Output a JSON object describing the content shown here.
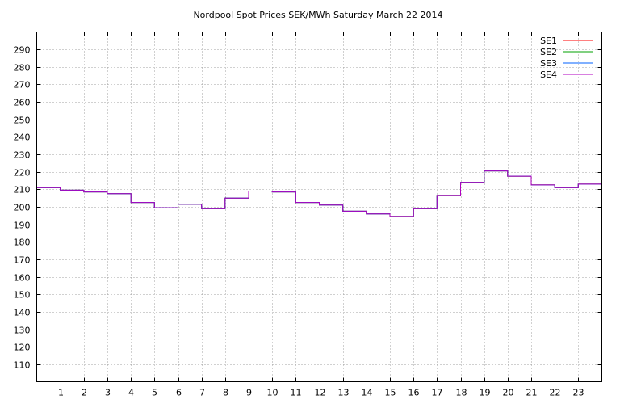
{
  "chart_data": {
    "type": "line",
    "step": true,
    "title": "Nordpool Spot Prices SEK/MWh Saturday March 22 2014",
    "xlabel": "",
    "ylabel": "",
    "xlim": [
      0,
      24
    ],
    "ylim": [
      100,
      300
    ],
    "x_ticks": [
      "1",
      "2",
      "3",
      "4",
      "5",
      "6",
      "7",
      "8",
      "9",
      "10",
      "11",
      "12",
      "13",
      "14",
      "15",
      "16",
      "17",
      "18",
      "19",
      "20",
      "21",
      "22",
      "23"
    ],
    "y_ticks": [
      "110",
      "120",
      "130",
      "140",
      "150",
      "160",
      "170",
      "180",
      "190",
      "200",
      "210",
      "220",
      "230",
      "240",
      "250",
      "260",
      "270",
      "280",
      "290"
    ],
    "grid": true,
    "legend_position": "top-right",
    "x": [
      0,
      1,
      2,
      3,
      4,
      5,
      6,
      7,
      8,
      9,
      10,
      11,
      12,
      13,
      14,
      15,
      16,
      17,
      18,
      19,
      20,
      21,
      22,
      23
    ],
    "series": [
      {
        "name": "SE1",
        "color": "#ff0000",
        "values": [
          211,
          209.5,
          208.5,
          207.5,
          202.5,
          199.5,
          201.5,
          199,
          205,
          209,
          208.5,
          202.5,
          201,
          197.5,
          196,
          194.5,
          199,
          206.5,
          214,
          220.5,
          217.5,
          212.5,
          211,
          213
        ]
      },
      {
        "name": "SE2",
        "color": "#00a000",
        "values": [
          211,
          209.5,
          208.5,
          207.5,
          202.5,
          199.5,
          201.5,
          199,
          205,
          209,
          208.5,
          202.5,
          201,
          197.5,
          196,
          194.5,
          199,
          206.5,
          214,
          220.5,
          217.5,
          212.5,
          211,
          213
        ]
      },
      {
        "name": "SE3",
        "color": "#0060ff",
        "values": [
          211,
          209.5,
          208.5,
          207.5,
          202.5,
          199.5,
          201.5,
          199,
          205,
          209,
          208.5,
          202.5,
          201,
          197.5,
          196,
          194.5,
          199,
          206.5,
          214,
          220.5,
          217.5,
          212.5,
          211,
          213
        ]
      },
      {
        "name": "SE4",
        "color": "#b000c0",
        "values": [
          211,
          209.5,
          208.5,
          207.5,
          202.5,
          199.5,
          201.5,
          199,
          205,
          209,
          208.5,
          202.5,
          201,
          197.5,
          196,
          194.5,
          199,
          206.5,
          214,
          220.5,
          217.5,
          212.5,
          211,
          213
        ]
      }
    ]
  }
}
